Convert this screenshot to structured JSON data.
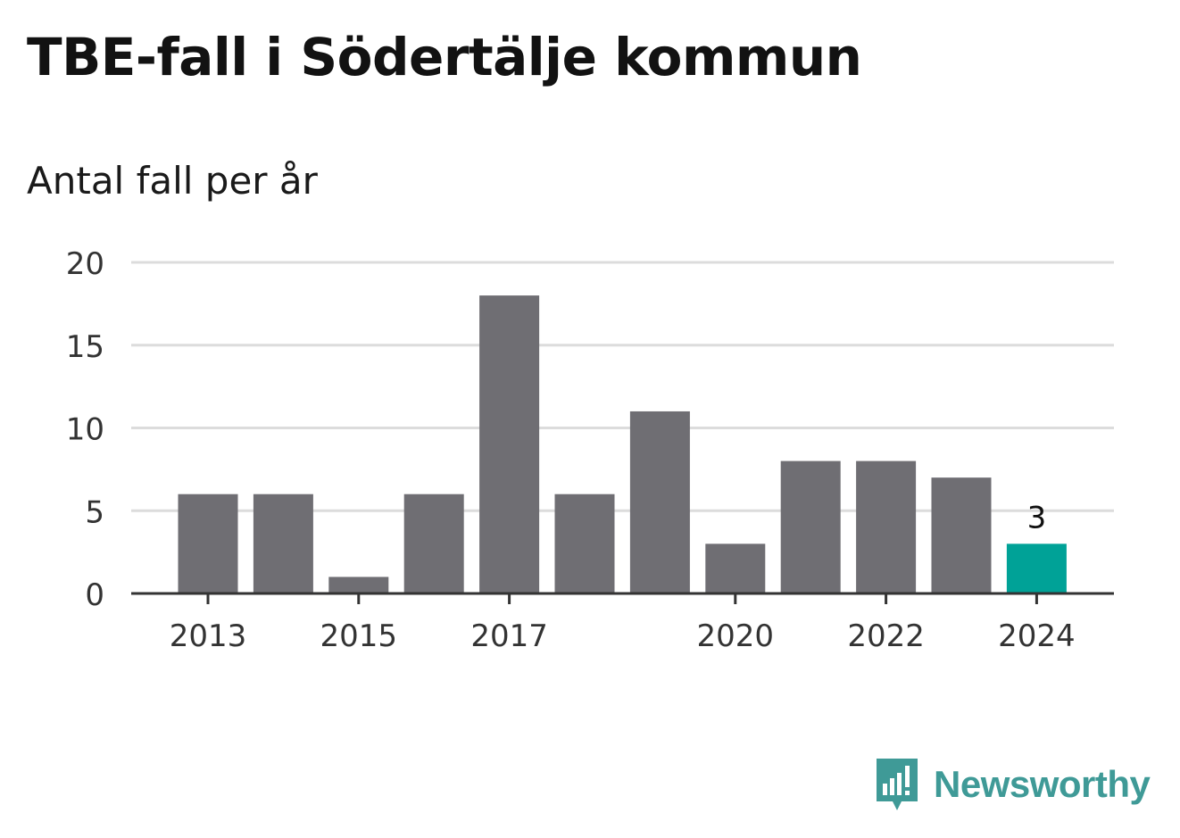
{
  "title": "TBE-fall i Södertälje kommun",
  "subtitle": "Antal fall per år",
  "brand": {
    "name": "Newsworthy",
    "logo_icon": "newsworthy-bar-chart-icon",
    "color": "#3f9a97"
  },
  "colors": {
    "bar": "#6f6e73",
    "highlight": "#00a297",
    "grid": "#dcdcdc",
    "axis": "#333333"
  },
  "chart_data": {
    "type": "bar",
    "title": "TBE-fall i Södertälje kommun",
    "subtitle": "Antal fall per år",
    "xlabel": "",
    "ylabel": "",
    "categories": [
      "2013",
      "2014",
      "2015",
      "2016",
      "2017",
      "2018",
      "2019",
      "2020",
      "2021",
      "2022",
      "2023",
      "2024"
    ],
    "values": [
      6,
      6,
      1,
      6,
      18,
      6,
      11,
      3,
      8,
      8,
      7,
      3
    ],
    "x_tick_labels": [
      "2013",
      "2015",
      "2017",
      "2020",
      "2022",
      "2024"
    ],
    "y_ticks": [
      0,
      5,
      10,
      15,
      20
    ],
    "ylim": [
      0,
      20
    ],
    "grid": true,
    "highlight_category": "2024",
    "data_labels": [
      {
        "category": "2024",
        "text": "3"
      }
    ],
    "legend": "none"
  }
}
